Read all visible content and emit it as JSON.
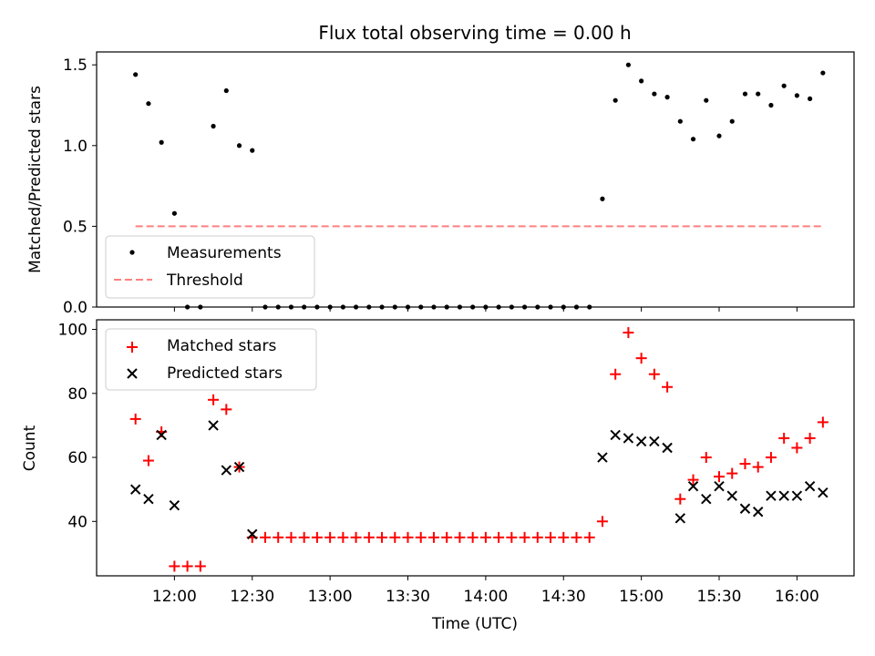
{
  "title": "Flux total observing time = 0.00 h",
  "colors": {
    "measurements": "#000000",
    "threshold": "#ff8080",
    "matched": "#ff0000",
    "predicted": "#000000"
  },
  "chart_data": [
    {
      "type": "scatter",
      "ylabel": "Matched/Predicted stars",
      "xlabel": "",
      "ylim": [
        0,
        1.58
      ],
      "yticks": [
        "0.0",
        "0.5",
        "1.0",
        "1.5"
      ],
      "ytick_values": [
        0,
        0.5,
        1.0,
        1.5
      ],
      "x_ticks_shared": true,
      "legend_position": "bottom-left",
      "series": [
        {
          "name": "Measurements",
          "marker": "dot",
          "x": [
            "11:45",
            "11:50",
            "11:55",
            "12:00",
            "12:05",
            "12:10",
            "12:15",
            "12:20",
            "12:25",
            "12:30",
            "12:35",
            "12:40",
            "12:45",
            "12:50",
            "12:55",
            "13:00",
            "13:05",
            "13:10",
            "13:15",
            "13:20",
            "13:25",
            "13:30",
            "13:35",
            "13:40",
            "13:45",
            "13:50",
            "13:55",
            "14:00",
            "14:05",
            "14:10",
            "14:15",
            "14:20",
            "14:25",
            "14:30",
            "14:35",
            "14:40",
            "14:45",
            "14:50",
            "14:55",
            "15:00",
            "15:05",
            "15:10",
            "15:15",
            "15:20",
            "15:25",
            "15:30",
            "15:35",
            "15:40",
            "15:45",
            "15:50",
            "15:55",
            "16:00",
            "16:05",
            "16:10"
          ],
          "y": [
            1.44,
            1.26,
            1.02,
            0.58,
            0.0,
            0.0,
            1.12,
            1.34,
            1.0,
            0.97,
            0.0,
            0.0,
            0.0,
            0.0,
            0.0,
            0.0,
            0.0,
            0.0,
            0.0,
            0.0,
            0.0,
            0.0,
            0.0,
            0.0,
            0.0,
            0.0,
            0.0,
            0.0,
            0.0,
            0.0,
            0.0,
            0.0,
            0.0,
            0.0,
            0.0,
            0.0,
            0.67,
            1.28,
            1.5,
            1.4,
            1.32,
            1.3,
            1.15,
            1.04,
            1.28,
            1.06,
            1.15,
            1.32,
            1.32,
            1.25,
            1.37,
            1.31,
            1.29,
            1.45
          ]
        },
        {
          "name": "Threshold",
          "style": "dashed",
          "x": [
            "11:45",
            "16:10"
          ],
          "y": [
            0.5,
            0.5
          ]
        }
      ]
    },
    {
      "type": "scatter",
      "ylabel": "Count",
      "xlabel": "Time (UTC)",
      "ylim": [
        23,
        103
      ],
      "yticks": [
        "40",
        "60",
        "80",
        "100"
      ],
      "ytick_values": [
        40,
        60,
        80,
        100
      ],
      "xlim": [
        "11:30",
        "16:22"
      ],
      "xticks": [
        "12:00",
        "12:30",
        "13:00",
        "13:30",
        "14:00",
        "14:30",
        "15:00",
        "15:30",
        "16:00"
      ],
      "legend_position": "top-left",
      "series": [
        {
          "name": "Matched stars",
          "marker": "plus",
          "x": [
            "11:45",
            "11:50",
            "11:55",
            "12:00",
            "12:05",
            "12:10",
            "12:15",
            "12:20",
            "12:25",
            "12:30",
            "12:35",
            "12:40",
            "12:45",
            "12:50",
            "12:55",
            "13:00",
            "13:05",
            "13:10",
            "13:15",
            "13:20",
            "13:25",
            "13:30",
            "13:35",
            "13:40",
            "13:45",
            "13:50",
            "13:55",
            "14:00",
            "14:05",
            "14:10",
            "14:15",
            "14:20",
            "14:25",
            "14:30",
            "14:35",
            "14:40",
            "14:45",
            "14:50",
            "14:55",
            "15:00",
            "15:05",
            "15:10",
            "15:15",
            "15:20",
            "15:25",
            "15:30",
            "15:35",
            "15:40",
            "15:45",
            "15:50",
            "15:55",
            "16:00",
            "16:05",
            "16:10"
          ],
          "y": [
            72,
            59,
            68,
            26,
            26,
            26,
            78,
            75,
            57,
            35,
            35,
            35,
            35,
            35,
            35,
            35,
            35,
            35,
            35,
            35,
            35,
            35,
            35,
            35,
            35,
            35,
            35,
            35,
            35,
            35,
            35,
            35,
            35,
            35,
            35,
            35,
            40,
            86,
            99,
            91,
            86,
            82,
            47,
            53,
            60,
            54,
            55,
            58,
            57,
            60,
            66,
            63,
            66,
            71
          ]
        },
        {
          "name": "Predicted stars",
          "marker": "x",
          "x": [
            "11:45",
            "11:50",
            "11:55",
            "12:00",
            "12:15",
            "12:20",
            "12:25",
            "12:30",
            "14:45",
            "14:50",
            "14:55",
            "15:00",
            "15:05",
            "15:10",
            "15:15",
            "15:20",
            "15:25",
            "15:30",
            "15:35",
            "15:40",
            "15:45",
            "15:50",
            "15:55",
            "16:00",
            "16:05",
            "16:10"
          ],
          "y": [
            50,
            47,
            67,
            45,
            70,
            56,
            57,
            36,
            60,
            67,
            66,
            65,
            65,
            63,
            41,
            51,
            47,
            51,
            48,
            44,
            43,
            48,
            48,
            48,
            51,
            49
          ]
        }
      ]
    }
  ]
}
